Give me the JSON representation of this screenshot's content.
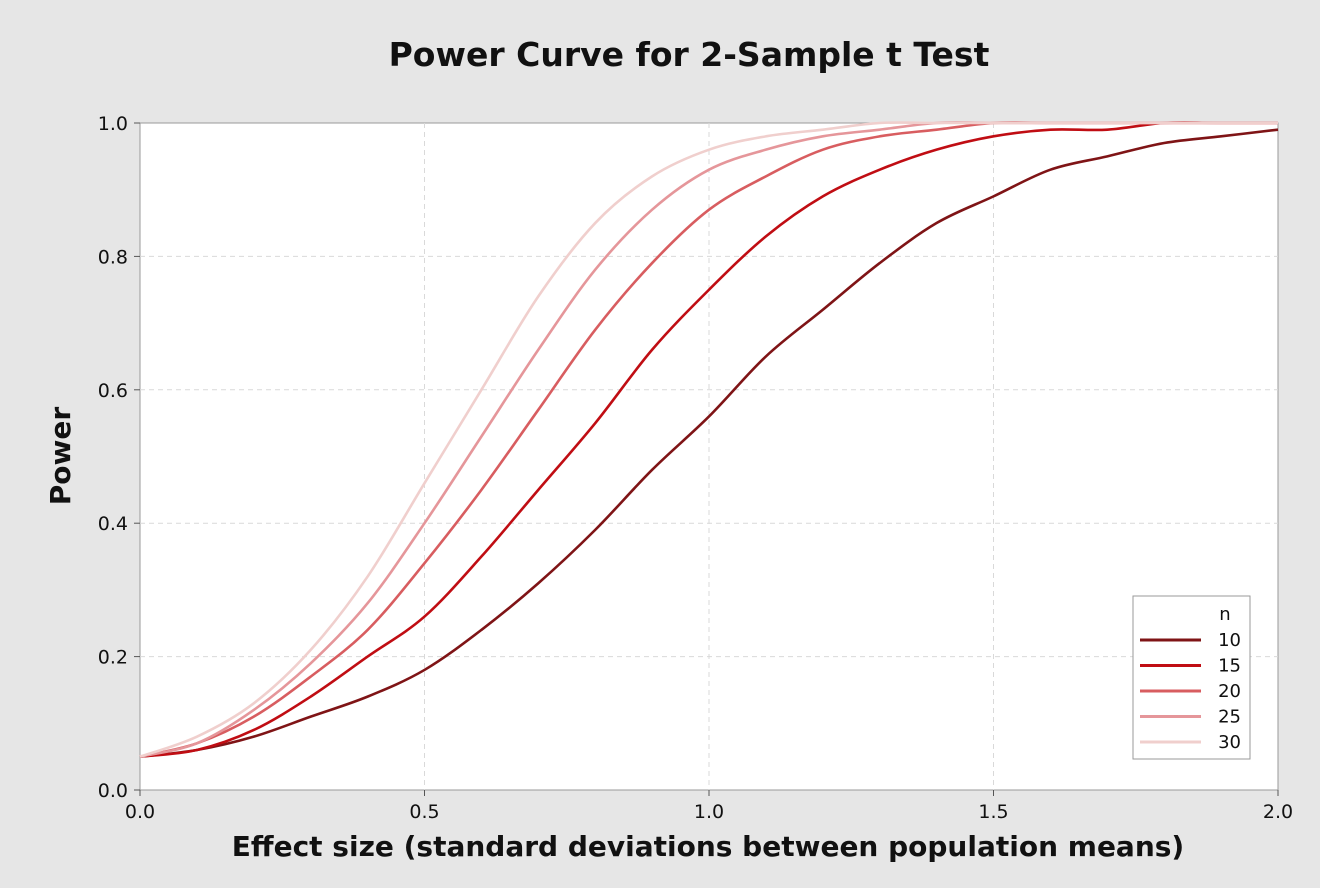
{
  "chart_data": {
    "type": "line",
    "title": "Power Curve for 2-Sample t Test",
    "xlabel": "Effect size (standard deviations between population means)",
    "ylabel": "Power",
    "xlim": [
      0.0,
      2.0
    ],
    "ylim": [
      0.0,
      1.0
    ],
    "x_ticks": [
      "0.0",
      "0.5",
      "1.0",
      "1.5",
      "2.0"
    ],
    "y_ticks": [
      "0.0",
      "0.2",
      "0.4",
      "0.6",
      "0.8",
      "1.0"
    ],
    "grid": true,
    "legend_title": "n",
    "legend_position": "bottom-right",
    "x": [
      0.0,
      0.1,
      0.2,
      0.3,
      0.4,
      0.5,
      0.6,
      0.7,
      0.8,
      0.9,
      1.0,
      1.1,
      1.2,
      1.3,
      1.4,
      1.5,
      1.6,
      1.7,
      1.8,
      1.9,
      2.0
    ],
    "series": [
      {
        "name": "10",
        "color": "#7f1416",
        "values": [
          0.05,
          0.06,
          0.08,
          0.11,
          0.14,
          0.18,
          0.24,
          0.31,
          0.39,
          0.48,
          0.56,
          0.65,
          0.72,
          0.79,
          0.85,
          0.89,
          0.93,
          0.95,
          0.97,
          0.98,
          0.99
        ]
      },
      {
        "name": "15",
        "color": "#c00d13",
        "values": [
          0.05,
          0.06,
          0.09,
          0.14,
          0.2,
          0.26,
          0.35,
          0.45,
          0.55,
          0.66,
          0.75,
          0.83,
          0.89,
          0.93,
          0.96,
          0.98,
          0.99,
          0.99,
          1.0,
          1.0,
          1.0
        ]
      },
      {
        "name": "20",
        "color": "#d85d60",
        "values": [
          0.05,
          0.07,
          0.11,
          0.17,
          0.24,
          0.34,
          0.45,
          0.57,
          0.69,
          0.79,
          0.87,
          0.92,
          0.96,
          0.98,
          0.99,
          1.0,
          1.0,
          1.0,
          1.0,
          1.0,
          1.0
        ]
      },
      {
        "name": "25",
        "color": "#e5969a",
        "values": [
          0.05,
          0.07,
          0.12,
          0.19,
          0.28,
          0.4,
          0.53,
          0.66,
          0.78,
          0.87,
          0.93,
          0.96,
          0.98,
          0.99,
          1.0,
          1.0,
          1.0,
          1.0,
          1.0,
          1.0,
          1.0
        ]
      },
      {
        "name": "30",
        "color": "#f0cfcd",
        "values": [
          0.05,
          0.08,
          0.13,
          0.21,
          0.32,
          0.46,
          0.6,
          0.74,
          0.85,
          0.92,
          0.96,
          0.98,
          0.99,
          1.0,
          1.0,
          1.0,
          1.0,
          1.0,
          1.0,
          1.0,
          1.0
        ]
      }
    ]
  }
}
